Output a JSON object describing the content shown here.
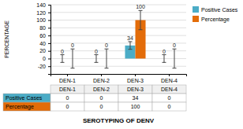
{
  "chart_data": {
    "type": "bar",
    "categories": [
      "DEN-1",
      "DEN-2",
      "DEN-3",
      "DEN-4"
    ],
    "series": [
      {
        "name": "Positive Cases",
        "color": "#4BACC6",
        "values": [
          0,
          0,
          34,
          0
        ],
        "errors": [
          10,
          10,
          10,
          10
        ]
      },
      {
        "name": "Percentage",
        "color": "#E36C09",
        "values": [
          0,
          0,
          100,
          0
        ],
        "errors": [
          25,
          25,
          25,
          25
        ]
      }
    ],
    "ylabel": "PERCENTAGE",
    "xlabel": "SEROTYPING OF DENV",
    "ylim": [
      -40,
      140
    ],
    "yticks": [
      -20,
      0,
      20,
      40,
      60,
      80,
      100,
      120,
      140
    ],
    "grid": true,
    "legend": "upper right",
    "data_labels": true
  }
}
